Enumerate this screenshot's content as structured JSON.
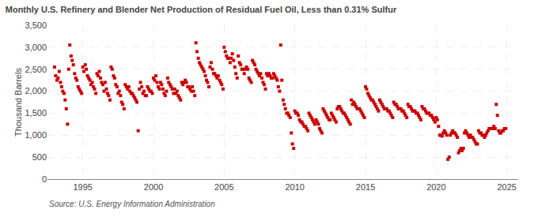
{
  "chart_data": {
    "type": "scatter",
    "title": "Monthly U.S. Refinery and Blender Net Production of Residual Fuel Oil, Less than 0.31% Sulfur",
    "ylabel": "Thousand Barrels",
    "annotations": [
      "Source: U.S. Energy Information Administration"
    ],
    "color": "#cc0000",
    "marker": "square",
    "grid": true,
    "xlim": [
      1992.5,
      2025.8
    ],
    "xticks": [
      1995,
      2000,
      2005,
      2010,
      2015,
      2020,
      2025
    ],
    "ylim": [
      0,
      3500
    ],
    "yticks": [
      0,
      500,
      {
        "value": 1000,
        "label": "1,000"
      },
      {
        "value": 1500,
        "label": "1,500"
      },
      {
        "value": 2000,
        "label": "2,000"
      },
      {
        "value": 2500,
        "label": "2,500"
      },
      {
        "value": 3000,
        "label": "3,000"
      },
      {
        "value": 3500,
        "label": "3,500"
      }
    ],
    "x": [
      1993.0,
      1993.08,
      1993.17,
      1993.25,
      1993.33,
      1993.42,
      1993.5,
      1993.58,
      1993.67,
      1993.75,
      1993.83,
      1993.92,
      1994.0,
      1994.08,
      1994.17,
      1994.25,
      1994.33,
      1994.42,
      1994.5,
      1994.58,
      1994.67,
      1994.75,
      1994.83,
      1994.92,
      1995.0,
      1995.08,
      1995.17,
      1995.25,
      1995.33,
      1995.42,
      1995.5,
      1995.58,
      1995.67,
      1995.75,
      1995.83,
      1995.92,
      1996.0,
      1996.08,
      1996.17,
      1996.25,
      1996.33,
      1996.42,
      1996.5,
      1996.58,
      1996.67,
      1996.75,
      1996.83,
      1996.92,
      1997.0,
      1997.08,
      1997.17,
      1997.25,
      1997.33,
      1997.42,
      1997.5,
      1997.58,
      1997.67,
      1997.75,
      1997.83,
      1997.92,
      1998.0,
      1998.08,
      1998.17,
      1998.25,
      1998.33,
      1998.42,
      1998.5,
      1998.58,
      1998.67,
      1998.75,
      1998.83,
      1998.92,
      1999.0,
      1999.08,
      1999.17,
      1999.25,
      1999.33,
      1999.42,
      1999.5,
      1999.58,
      1999.67,
      1999.75,
      1999.83,
      1999.92,
      2000.0,
      2000.08,
      2000.17,
      2000.25,
      2000.33,
      2000.42,
      2000.5,
      2000.58,
      2000.67,
      2000.75,
      2000.83,
      2000.92,
      2001.0,
      2001.08,
      2001.17,
      2001.25,
      2001.33,
      2001.42,
      2001.5,
      2001.58,
      2001.67,
      2001.75,
      2001.83,
      2001.92,
      2002.0,
      2002.08,
      2002.17,
      2002.25,
      2002.33,
      2002.42,
      2002.5,
      2002.58,
      2002.67,
      2002.75,
      2002.83,
      2002.92,
      2003.0,
      2003.08,
      2003.17,
      2003.25,
      2003.33,
      2003.42,
      2003.5,
      2003.58,
      2003.67,
      2003.75,
      2003.83,
      2003.92,
      2004.0,
      2004.08,
      2004.17,
      2004.25,
      2004.33,
      2004.42,
      2004.5,
      2004.58,
      2004.67,
      2004.75,
      2004.83,
      2004.92,
      2005.0,
      2005.08,
      2005.17,
      2005.25,
      2005.33,
      2005.42,
      2005.5,
      2005.58,
      2005.67,
      2005.75,
      2005.83,
      2005.92,
      2006.0,
      2006.08,
      2006.17,
      2006.25,
      2006.33,
      2006.42,
      2006.5,
      2006.58,
      2006.67,
      2006.75,
      2006.83,
      2006.92,
      2007.0,
      2007.08,
      2007.17,
      2007.25,
      2007.33,
      2007.42,
      2007.5,
      2007.58,
      2007.67,
      2007.75,
      2007.83,
      2007.92,
      2008.0,
      2008.08,
      2008.17,
      2008.25,
      2008.33,
      2008.42,
      2008.5,
      2008.58,
      2008.67,
      2008.75,
      2008.83,
      2008.92,
      2009.0,
      2009.08,
      2009.17,
      2009.25,
      2009.33,
      2009.42,
      2009.5,
      2009.58,
      2009.67,
      2009.75,
      2009.83,
      2009.92,
      2010.0,
      2010.08,
      2010.17,
      2010.25,
      2010.33,
      2010.42,
      2010.5,
      2010.58,
      2010.67,
      2010.75,
      2010.83,
      2010.92,
      2011.0,
      2011.08,
      2011.17,
      2011.25,
      2011.33,
      2011.42,
      2011.5,
      2011.58,
      2011.67,
      2011.75,
      2011.83,
      2011.92,
      2012.0,
      2012.08,
      2012.17,
      2012.25,
      2012.33,
      2012.42,
      2012.5,
      2012.58,
      2012.67,
      2012.75,
      2012.83,
      2012.92,
      2013.0,
      2013.08,
      2013.17,
      2013.25,
      2013.33,
      2013.42,
      2013.5,
      2013.58,
      2013.67,
      2013.75,
      2013.83,
      2013.92,
      2014.0,
      2014.08,
      2014.17,
      2014.25,
      2014.33,
      2014.42,
      2014.5,
      2014.58,
      2014.67,
      2014.75,
      2014.83,
      2014.92,
      2015.0,
      2015.08,
      2015.17,
      2015.25,
      2015.33,
      2015.42,
      2015.5,
      2015.58,
      2015.67,
      2015.75,
      2015.83,
      2015.92,
      2016.0,
      2016.08,
      2016.17,
      2016.25,
      2016.33,
      2016.42,
      2016.5,
      2016.58,
      2016.67,
      2016.75,
      2016.83,
      2016.92,
      2017.0,
      2017.08,
      2017.17,
      2017.25,
      2017.33,
      2017.42,
      2017.5,
      2017.58,
      2017.67,
      2017.75,
      2017.83,
      2017.92,
      2018.0,
      2018.08,
      2018.17,
      2018.25,
      2018.33,
      2018.42,
      2018.5,
      2018.58,
      2018.67,
      2018.75,
      2018.83,
      2018.92,
      2019.0,
      2019.08,
      2019.17,
      2019.25,
      2019.33,
      2019.42,
      2019.5,
      2019.58,
      2019.67,
      2019.75,
      2019.83,
      2019.92,
      2020.0,
      2020.08,
      2020.17,
      2020.25,
      2020.33,
      2020.42,
      2020.5,
      2020.58,
      2020.67,
      2020.75,
      2020.83,
      2020.92,
      2021.0,
      2021.08,
      2021.17,
      2021.25,
      2021.33,
      2021.42,
      2021.5,
      2021.58,
      2021.67,
      2021.75,
      2021.83,
      2021.92,
      2022.0,
      2022.08,
      2022.17,
      2022.25,
      2022.33,
      2022.42,
      2022.5,
      2022.58,
      2022.67,
      2022.75,
      2022.83,
      2022.92,
      2023.0,
      2023.08,
      2023.17,
      2023.25,
      2023.33,
      2023.42,
      2023.5,
      2023.58,
      2023.67,
      2023.75,
      2023.83,
      2023.92,
      2024.0,
      2024.08,
      2024.17,
      2024.25,
      2024.33,
      2024.42,
      2024.5,
      2024.58,
      2024.67,
      2024.75,
      2024.83,
      2024.92
    ],
    "values": [
      2550,
      2350,
      2250,
      2300,
      2450,
      2200,
      2100,
      2000,
      1950,
      1800,
      1600,
      1250,
      2500,
      3050,
      2800,
      2700,
      2600,
      2400,
      2300,
      2250,
      2100,
      2050,
      2000,
      1950,
      2550,
      2450,
      2600,
      2500,
      2350,
      2300,
      2250,
      2150,
      2200,
      2100,
      2050,
      1950,
      2400,
      2350,
      2450,
      2300,
      2200,
      2150,
      2000,
      2200,
      2050,
      1950,
      1900,
      1800,
      2550,
      2500,
      2350,
      2300,
      2150,
      2100,
      1950,
      2000,
      1900,
      1750,
      1700,
      1600,
      2150,
      2100,
      2050,
      2100,
      2000,
      1950,
      1950,
      1900,
      1850,
      1800,
      1750,
      1100,
      2050,
      2200,
      2100,
      1950,
      2000,
      1900,
      1900,
      2100,
      2050,
      2000,
      2000,
      1950,
      2300,
      2250,
      2350,
      2200,
      2100,
      2050,
      2200,
      2150,
      2050,
      1950,
      1900,
      2000,
      2300,
      2200,
      2150,
      2100,
      2050,
      1950,
      2050,
      1950,
      2000,
      1900,
      1850,
      1800,
      2200,
      2150,
      2200,
      2250,
      2200,
      2100,
      2100,
      2050,
      2000,
      2100,
      2000,
      1900,
      3100,
      2900,
      2750,
      2650,
      2600,
      2550,
      2500,
      2450,
      2350,
      2250,
      2200,
      2100,
      2550,
      2650,
      2500,
      2400,
      2400,
      2350,
      2300,
      2350,
      2250,
      2200,
      2150,
      2050,
      3000,
      2900,
      2800,
      2750,
      2750,
      2650,
      2750,
      2850,
      2700,
      2550,
      2400,
      2300,
      2800,
      2650,
      2600,
      2500,
      2500,
      2400,
      2500,
      2550,
      2500,
      2300,
      2250,
      2200,
      2700,
      2650,
      2600,
      2500,
      2450,
      2400,
      2350,
      2400,
      2300,
      2200,
      2150,
      2050,
      2400,
      2350,
      2400,
      2350,
      2300,
      2300,
      2400,
      2350,
      2300,
      2250,
      2100,
      2000,
      3050,
      2250,
      1800,
      1700,
      1600,
      1500,
      1500,
      1450,
      1400,
      1050,
      800,
      700,
      1550,
      1500,
      1500,
      1450,
      1350,
      1300,
      1300,
      1250,
      1200,
      1200,
      1150,
      1100,
      1500,
      1450,
      1400,
      1350,
      1300,
      1250,
      1350,
      1300,
      1250,
      1150,
      1100,
      1050,
      1600,
      1550,
      1500,
      1450,
      1400,
      1350,
      1350,
      1500,
      1450,
      1400,
      1350,
      1300,
      1600,
      1650,
      1650,
      1600,
      1550,
      1500,
      1500,
      1450,
      1400,
      1350,
      1300,
      1250,
      1800,
      1700,
      1750,
      1700,
      1650,
      1600,
      1600,
      1600,
      1550,
      1500,
      1450,
      1400,
      2100,
      2050,
      1950,
      1900,
      1850,
      1800,
      1800,
      1750,
      1700,
      1650,
      1600,
      1550,
      1800,
      1750,
      1700,
      1650,
      1600,
      1600,
      1600,
      1550,
      1550,
      1500,
      1450,
      1400,
      1750,
      1700,
      1700,
      1650,
      1600,
      1600,
      1600,
      1550,
      1550,
      1500,
      1450,
      1400,
      1700,
      1650,
      1650,
      1600,
      1550,
      1550,
      1550,
      1500,
      1500,
      1450,
      1400,
      1350,
      1650,
      1600,
      1600,
      1550,
      1500,
      1500,
      1500,
      1450,
      1450,
      1400,
      1350,
      1300,
      1400,
      1350,
      1200,
      1000,
      1000,
      980,
      1050,
      1100,
      1050,
      1000,
      450,
      500,
      1000,
      1050,
      1100,
      1050,
      1050,
      1000,
      950,
      600,
      650,
      700,
      650,
      700,
      1050,
      1100,
      1050,
      1000,
      950,
      1000,
      950,
      950,
      900,
      850,
      800,
      800,
      1100,
      1050,
      1050,
      1000,
      1000,
      950,
      1000,
      1050,
      1100,
      1150,
      1150,
      1150,
      1150,
      1200,
      1150,
      1700,
      1450,
      1100,
      1050,
      1050,
      1100,
      1100,
      1150,
      1150
    ]
  }
}
